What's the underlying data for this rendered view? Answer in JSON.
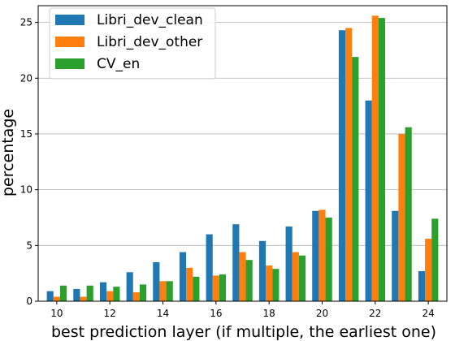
{
  "chart_data": {
    "type": "bar",
    "title": "",
    "xlabel": "best prediction layer (if multiple, the earliest one)",
    "ylabel": "percentage",
    "x": [
      10,
      11,
      12,
      13,
      14,
      15,
      16,
      17,
      18,
      19,
      20,
      21,
      22,
      23,
      24
    ],
    "xticks": [
      10,
      12,
      14,
      16,
      18,
      20,
      22,
      24
    ],
    "yticks": [
      0,
      5,
      10,
      15,
      20,
      25
    ],
    "ylim": [
      0,
      26.5
    ],
    "xlim": [
      9.3,
      24.7
    ],
    "grid": "horizontal",
    "legend_position": "top-left",
    "series": [
      {
        "name": "Libri_dev_clean",
        "color": "#1f77b4",
        "values": [
          0.9,
          1.1,
          1.7,
          2.6,
          3.5,
          4.4,
          6.0,
          6.9,
          5.4,
          6.7,
          8.1,
          24.3,
          18.0,
          8.1,
          2.7
        ]
      },
      {
        "name": "Libri_dev_other",
        "color": "#ff7f0e",
        "values": [
          0.4,
          0.4,
          0.9,
          0.8,
          1.8,
          3.0,
          2.3,
          4.4,
          3.2,
          4.4,
          8.2,
          24.5,
          25.6,
          15.0,
          5.6
        ]
      },
      {
        "name": "CV_en",
        "color": "#2ca02c",
        "values": [
          1.4,
          1.4,
          1.3,
          1.5,
          1.8,
          2.2,
          2.4,
          3.7,
          2.9,
          4.1,
          7.5,
          21.9,
          25.4,
          15.6,
          7.4
        ]
      }
    ]
  }
}
